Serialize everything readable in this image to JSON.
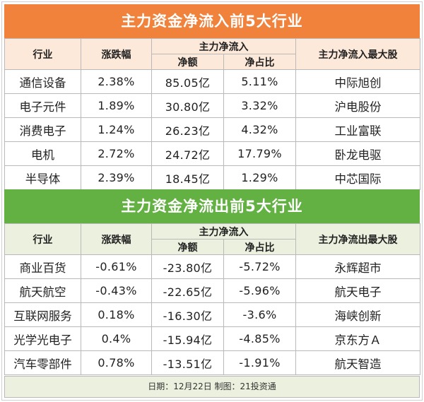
{
  "inflow": {
    "title": "主力资金净流入前5大行业",
    "headers": {
      "industry": "行业",
      "change": "涨跌幅",
      "main_flow": "主力净流入",
      "net_amount": "净额",
      "net_ratio": "净占比",
      "top_stock": "主力净流入最大股"
    },
    "rows": [
      {
        "industry": "通信设备",
        "change": "2.38%",
        "amount": "85.05亿",
        "ratio": "5.11%",
        "stock": "中际旭创"
      },
      {
        "industry": "电子元件",
        "change": "1.89%",
        "amount": "30.80亿",
        "ratio": "3.32%",
        "stock": "沪电股份"
      },
      {
        "industry": "消费电子",
        "change": "1.24%",
        "amount": "26.23亿",
        "ratio": "4.32%",
        "stock": "工业富联"
      },
      {
        "industry": "电机",
        "change": "2.72%",
        "amount": "24.72亿",
        "ratio": "17.79%",
        "stock": "卧龙电驱"
      },
      {
        "industry": "半导体",
        "change": "2.39%",
        "amount": "18.45亿",
        "ratio": "1.29%",
        "stock": "中芯国际"
      }
    ]
  },
  "outflow": {
    "title": "主力资金净流出前5大行业",
    "headers": {
      "industry": "行业",
      "change": "涨跌幅",
      "main_flow": "主力净流入",
      "net_amount": "净额",
      "net_ratio": "净占比",
      "top_stock": "主力净流出最大股"
    },
    "rows": [
      {
        "industry": "商业百货",
        "change": "-0.61%",
        "amount": "-23.80亿",
        "ratio": "-5.72%",
        "stock": "永辉超市"
      },
      {
        "industry": "航天航空",
        "change": "-0.43%",
        "amount": "-22.65亿",
        "ratio": "-5.96%",
        "stock": "航天电子"
      },
      {
        "industry": "互联网服务",
        "change": "0.18%",
        "amount": "-16.30亿",
        "ratio": "-3.6%",
        "stock": "海峡创新"
      },
      {
        "industry": "光学光电子",
        "change": "0.4%",
        "amount": "-15.94亿",
        "ratio": "-4.85%",
        "stock": "京东方Ａ"
      },
      {
        "industry": "汽车零部件",
        "change": "0.78%",
        "amount": "-13.51亿",
        "ratio": "-1.91%",
        "stock": "航天智造"
      }
    ]
  },
  "footer": "日期：12月22日 制图：21投资通",
  "colors": {
    "inflow_title_bg": "#f0823c",
    "inflow_header_bg": "#fde9d9",
    "outflow_title_bg": "#63b043",
    "outflow_header_bg": "#ebf1de"
  }
}
